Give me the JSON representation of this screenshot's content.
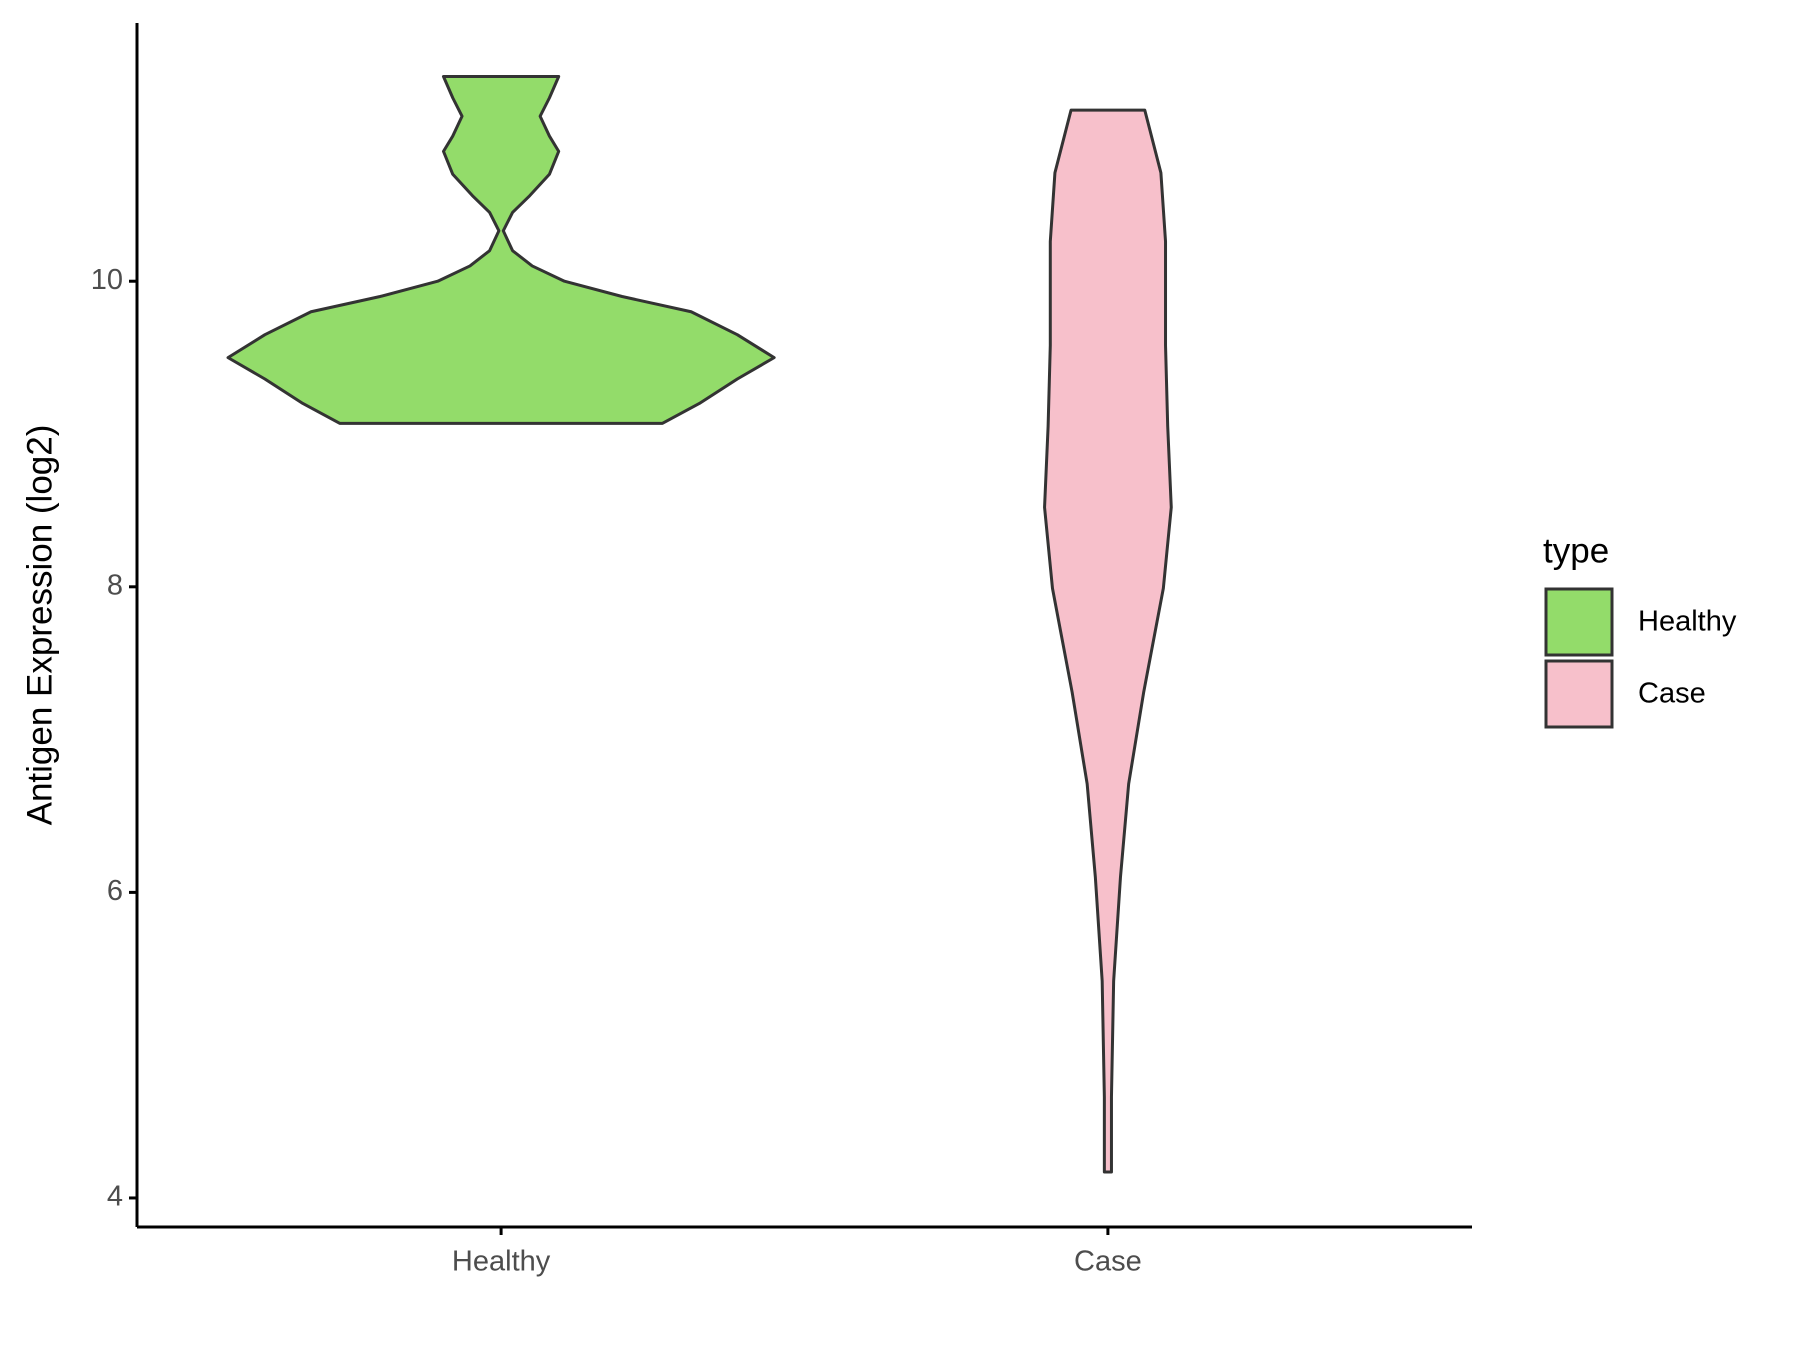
{
  "chart_data": {
    "type": "violin",
    "ylabel": "Antigen Expression (log2)",
    "categories": [
      "Healthy",
      "Case"
    ],
    "ylim": [
      3.81,
      11.69
    ],
    "yticks": [
      4,
      6,
      8,
      10
    ],
    "legend_title": "type",
    "legend": "right",
    "series": [
      {
        "name": "Healthy",
        "color": "#93dc6a",
        "y": [
          11.34,
          11.2,
          11.08,
          10.95,
          10.85,
          10.7,
          10.56,
          10.45,
          10.33,
          10.2,
          10.1,
          10.0,
          9.9,
          9.8,
          9.65,
          9.5,
          9.36,
          9.2,
          9.07
        ],
        "density": [
          0.211,
          0.177,
          0.143,
          0.177,
          0.211,
          0.177,
          0.105,
          0.042,
          0.008,
          0.042,
          0.114,
          0.232,
          0.443,
          0.696,
          0.865,
          1,
          0.865,
          0.726,
          0.591
        ]
      },
      {
        "name": "Case",
        "color": "#f7c0cb",
        "y": [
          11.12,
          10.71,
          10.26,
          9.58,
          9.05,
          8.52,
          7.99,
          7.31,
          6.71,
          6.1,
          5.42,
          4.66,
          4.17
        ],
        "density": [
          0.135,
          0.194,
          0.211,
          0.211,
          0.219,
          0.232,
          0.203,
          0.131,
          0.076,
          0.046,
          0.021,
          0.013,
          0.013
        ]
      }
    ]
  }
}
